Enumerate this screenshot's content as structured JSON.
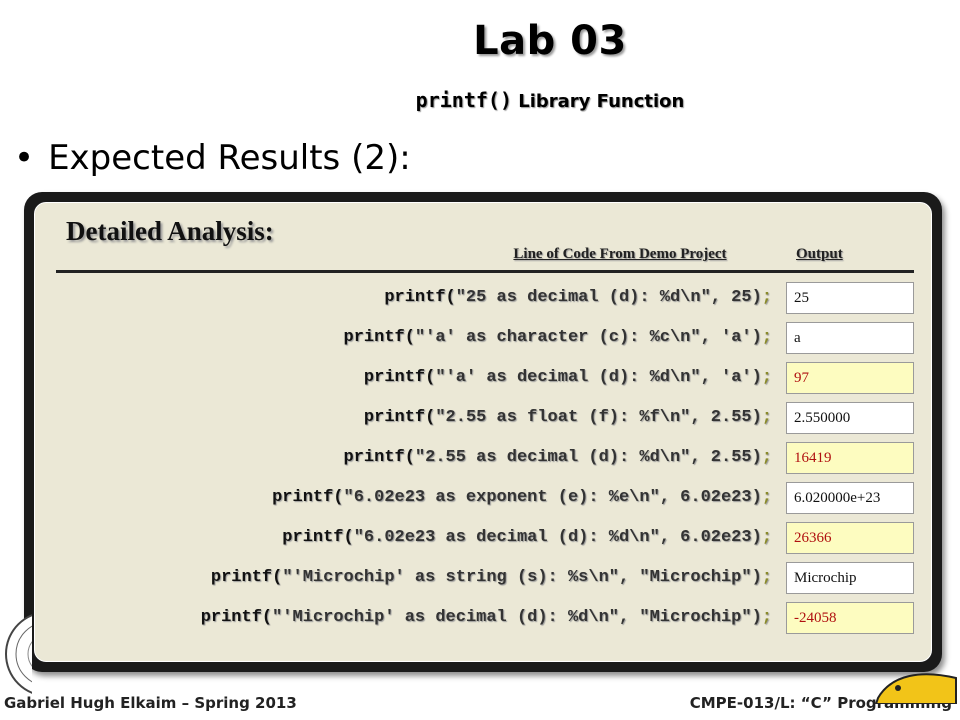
{
  "slide": {
    "title": "Lab 03",
    "subtitle_code": "printf()",
    "subtitle_text": " Library Function",
    "bullet": "Expected Results (2):"
  },
  "panel": {
    "heading": "Detailed Analysis:",
    "col_code": "Line of Code From Demo Project",
    "col_output": "Output",
    "rows": [
      {
        "pre": "printf(",
        "args": "\"25 as decimal (d): %d\\n\", 25)",
        "post": ";",
        "output": "25",
        "highlight": false
      },
      {
        "pre": "printf(",
        "args": "\"'a' as character (c): %c\\n\", 'a')",
        "post": ";",
        "output": "a",
        "highlight": false
      },
      {
        "pre": "printf(",
        "args": "\"'a' as decimal (d): %d\\n\", 'a')",
        "post": ";",
        "output": "97",
        "highlight": true
      },
      {
        "pre": "printf(",
        "args": "\"2.55 as float (f): %f\\n\", 2.55)",
        "post": ";",
        "output": "2.550000",
        "highlight": false
      },
      {
        "pre": "printf(",
        "args": "\"2.55 as decimal (d): %d\\n\", 2.55)",
        "post": ";",
        "output": "16419",
        "highlight": true
      },
      {
        "pre": "printf(",
        "args": "\"6.02e23 as exponent (e): %e\\n\", 6.02e23)",
        "post": ";",
        "output": "6.020000e+23",
        "highlight": false
      },
      {
        "pre": "printf(",
        "args": "\"6.02e23 as decimal (d): %d\\n\", 6.02e23)",
        "post": ";",
        "output": "26366",
        "highlight": true
      },
      {
        "pre": "printf(",
        "args": "\"'Microchip' as string (s): %s\\n\", \"Microchip\")",
        "post": ";",
        "output": "Microchip",
        "highlight": false
      },
      {
        "pre": "printf(",
        "args": "\"'Microchip' as decimal (d): %d\\n\", \"Microchip\")",
        "post": ";",
        "output": "-24058",
        "highlight": true
      }
    ]
  },
  "footer": {
    "left": "Gabriel Hugh Elkaim – Spring 2013",
    "right": "CMPE-013/L: “C” Programming"
  },
  "icons": {
    "seal": "university-seal-icon",
    "mascot": "slug-mascot-icon"
  },
  "colors": {
    "panel_bg": "#ebe8d6",
    "warn_bg": "#fdfcc0",
    "warn_text": "#b01010"
  }
}
